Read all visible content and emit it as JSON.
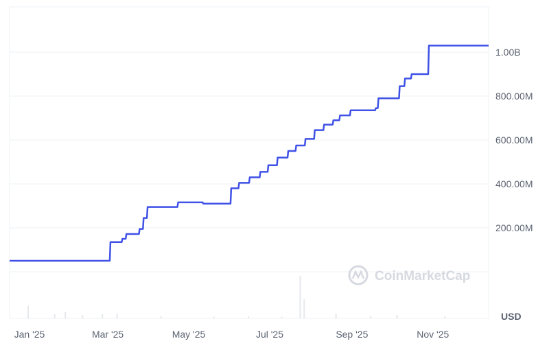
{
  "chart_data": {
    "type": "line",
    "title": "",
    "xlabel": "",
    "ylabel": "",
    "currency_label": "USD",
    "watermark": "CoinMarketCap",
    "line_color": "#3f51e6",
    "grid": true,
    "x_range": [
      "2024-12-17",
      "2025-12-13"
    ],
    "ylim": [
      0,
      1100000000
    ],
    "y_ticks": [
      {
        "value": 200000000,
        "label": "200.00M"
      },
      {
        "value": 400000000,
        "label": "400.00M"
      },
      {
        "value": 600000000,
        "label": "600.00M"
      },
      {
        "value": 800000000,
        "label": "800.00M"
      },
      {
        "value": 1000000000,
        "label": "1.00B"
      }
    ],
    "x_ticks": [
      {
        "date": "2025-01-01",
        "label": "Jan '25"
      },
      {
        "date": "2025-03-01",
        "label": "Mar '25"
      },
      {
        "date": "2025-05-01",
        "label": "May '25"
      },
      {
        "date": "2025-07-01",
        "label": "Jul '25"
      },
      {
        "date": "2025-09-01",
        "label": "Sep '25"
      },
      {
        "date": "2025-11-01",
        "label": "Nov '25"
      }
    ],
    "series": [
      {
        "points": [
          [
            "2024-12-17",
            50000000
          ],
          [
            "2025-03-03",
            135000000
          ],
          [
            "2025-03-12",
            150000000
          ],
          [
            "2025-03-15",
            172000000
          ],
          [
            "2025-03-25",
            195000000
          ],
          [
            "2025-03-28",
            245000000
          ],
          [
            "2025-03-31",
            295000000
          ],
          [
            "2025-04-23",
            316000000
          ],
          [
            "2025-05-12",
            310000000
          ],
          [
            "2025-06-02",
            380000000
          ],
          [
            "2025-06-08",
            405000000
          ],
          [
            "2025-06-16",
            430000000
          ],
          [
            "2025-06-24",
            455000000
          ],
          [
            "2025-06-30",
            485000000
          ],
          [
            "2025-07-07",
            520000000
          ],
          [
            "2025-07-15",
            550000000
          ],
          [
            "2025-07-21",
            575000000
          ],
          [
            "2025-07-28",
            605000000
          ],
          [
            "2025-08-04",
            645000000
          ],
          [
            "2025-08-11",
            670000000
          ],
          [
            "2025-08-18",
            690000000
          ],
          [
            "2025-08-23",
            712000000
          ],
          [
            "2025-08-31",
            735000000
          ],
          [
            "2025-09-19",
            745000000
          ],
          [
            "2025-09-21",
            790000000
          ],
          [
            "2025-10-07",
            845000000
          ],
          [
            "2025-10-11",
            880000000
          ],
          [
            "2025-10-16",
            900000000
          ],
          [
            "2025-10-29",
            1030000000
          ],
          [
            "2025-12-13",
            1030000000
          ]
        ]
      }
    ],
    "volume_relative": [
      [
        "2024-12-31",
        0.3
      ],
      [
        "2025-01-20",
        0.1
      ],
      [
        "2025-01-28",
        0.15
      ],
      [
        "2025-02-10",
        0.08
      ],
      [
        "2025-02-25",
        0.1
      ],
      [
        "2025-03-08",
        0.12
      ],
      [
        "2025-04-10",
        0.05
      ],
      [
        "2025-05-20",
        0.04
      ],
      [
        "2025-06-15",
        0.05
      ],
      [
        "2025-07-10",
        0.04
      ],
      [
        "2025-07-24",
        1.0
      ],
      [
        "2025-07-27",
        0.45
      ],
      [
        "2025-08-20",
        0.12
      ],
      [
        "2025-09-15",
        0.06
      ],
      [
        "2025-10-05",
        0.08
      ],
      [
        "2025-11-10",
        0.05
      ]
    ]
  }
}
